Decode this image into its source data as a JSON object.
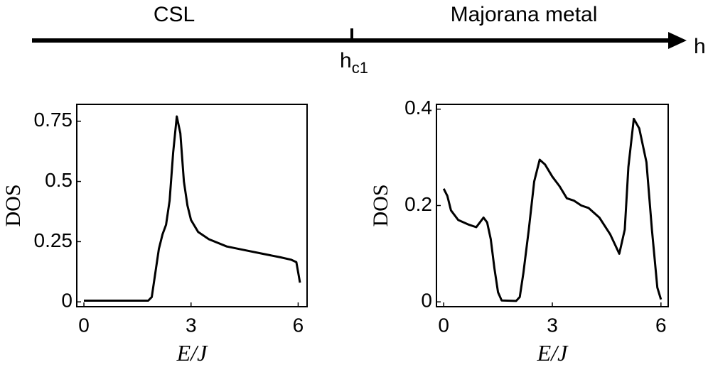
{
  "phase_diagram": {
    "left_phase": "CSL",
    "right_phase": "Majorana metal",
    "axis_label": "h",
    "critical_point": {
      "main": "h",
      "sub": "c1"
    }
  },
  "chart_data": [
    {
      "type": "line",
      "ylabel": "DOS",
      "xlabel": "E/J",
      "color": "#000000",
      "x": [
        0,
        1,
        1.8,
        1.9,
        2.0,
        2.1,
        2.2,
        2.3,
        2.4,
        2.5,
        2.6,
        2.7,
        2.8,
        2.9,
        3.0,
        3.2,
        3.5,
        4,
        4.5,
        5,
        5.5,
        5.8,
        5.95,
        6.05
      ],
      "values": [
        0.005,
        0.005,
        0.005,
        0.02,
        0.12,
        0.22,
        0.28,
        0.32,
        0.42,
        0.62,
        0.77,
        0.7,
        0.5,
        0.4,
        0.34,
        0.29,
        0.26,
        0.23,
        0.215,
        0.2,
        0.185,
        0.175,
        0.165,
        0.08
      ],
      "xlim": [
        -0.2,
        6.25
      ],
      "xticks": [
        0,
        3,
        6
      ],
      "ylim": [
        -0.02,
        0.82
      ],
      "yticks": [
        0,
        0.25,
        0.5,
        0.75
      ]
    },
    {
      "type": "line",
      "ylabel": "DOS",
      "xlabel": "E/J",
      "color": "#000000",
      "x": [
        0,
        0.1,
        0.2,
        0.4,
        0.7,
        0.9,
        1.0,
        1.1,
        1.2,
        1.3,
        1.4,
        1.5,
        1.6,
        2.0,
        2.1,
        2.2,
        2.35,
        2.5,
        2.65,
        2.8,
        3.0,
        3.2,
        3.4,
        3.6,
        3.8,
        4.0,
        4.3,
        4.6,
        4.85,
        5.0,
        5.1,
        5.25,
        5.4,
        5.6,
        5.75,
        5.9,
        6.0
      ],
      "values": [
        0.235,
        0.22,
        0.19,
        0.17,
        0.16,
        0.155,
        0.165,
        0.175,
        0.165,
        0.13,
        0.07,
        0.02,
        0.003,
        0.002,
        0.01,
        0.06,
        0.15,
        0.25,
        0.295,
        0.285,
        0.26,
        0.24,
        0.215,
        0.21,
        0.2,
        0.195,
        0.175,
        0.14,
        0.1,
        0.15,
        0.28,
        0.38,
        0.36,
        0.29,
        0.15,
        0.03,
        0.005
      ],
      "xlim": [
        -0.2,
        6.2
      ],
      "xticks": [
        0,
        3,
        6
      ],
      "ylim": [
        -0.01,
        0.41
      ],
      "yticks": [
        0,
        0.2,
        0.4
      ]
    }
  ]
}
